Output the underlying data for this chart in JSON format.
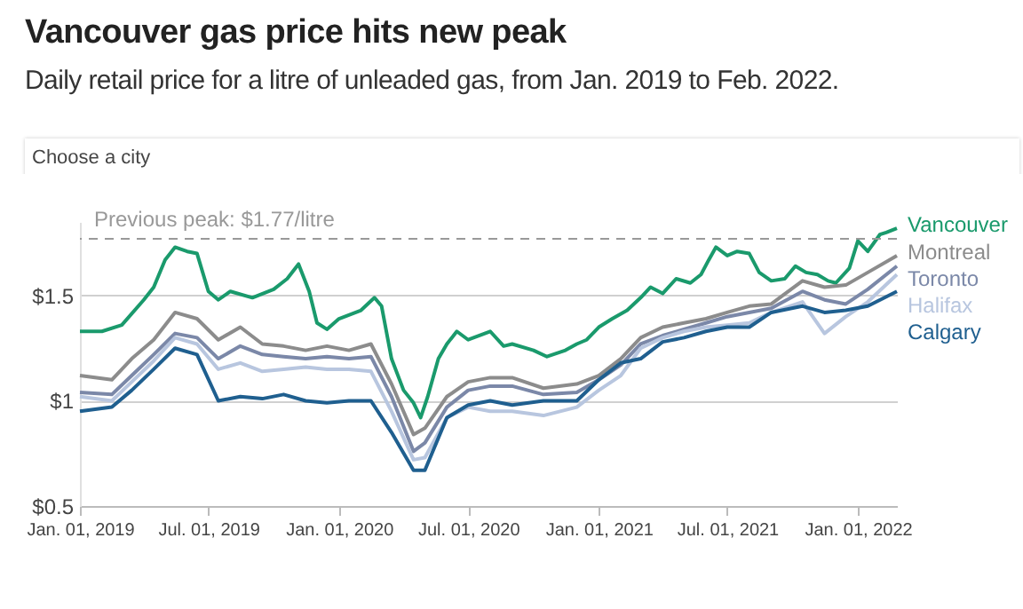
{
  "chart_data": {
    "type": "line",
    "title": "Vancouver gas price hits new peak",
    "subtitle": "Daily retail price for a litre of unleaded gas, from Jan. 2019 to Feb. 2022.",
    "annotations": [
      "Choose a city"
    ],
    "xlim": [
      "2019-01-01",
      "2022-02-25"
    ],
    "xticks": [
      {
        "value": "2019-01-01",
        "label": "Jan. 01, 2019"
      },
      {
        "value": "2019-07-01",
        "label": "Jul. 01, 2019"
      },
      {
        "value": "2020-01-01",
        "label": "Jan. 01, 2020"
      },
      {
        "value": "2020-07-01",
        "label": "Jul. 01, 2020"
      },
      {
        "value": "2021-01-01",
        "label": "Jan. 01, 2021"
      },
      {
        "value": "2021-07-01",
        "label": "Jul. 01, 2021"
      },
      {
        "value": "2022-01-01",
        "label": "Jan. 01, 2022"
      }
    ],
    "ylim": [
      0.5,
      1.85
    ],
    "yticks": [
      {
        "value": 0.5,
        "label": "$0.5"
      },
      {
        "value": 1,
        "label": "$1"
      },
      {
        "value": 1.5,
        "label": "$1.5"
      }
    ],
    "grid": "y",
    "legend": "right",
    "ref_lines": [
      {
        "axis": "y",
        "value": 1.77,
        "label": "Previous peak: $1.77/litre",
        "color": "#999999",
        "line_style": "dashed"
      }
    ],
    "series": [
      {
        "name": "Vancouver",
        "color": "#1a9a6c",
        "x": [
          "2019-01-01",
          "2019-02-01",
          "2019-03-01",
          "2019-04-01",
          "2019-04-15",
          "2019-05-01",
          "2019-05-15",
          "2019-06-01",
          "2019-06-15",
          "2019-07-01",
          "2019-07-15",
          "2019-08-01",
          "2019-09-01",
          "2019-10-01",
          "2019-10-20",
          "2019-11-05",
          "2019-11-20",
          "2019-12-01",
          "2019-12-15",
          "2020-01-01",
          "2020-02-01",
          "2020-02-20",
          "2020-03-01",
          "2020-03-15",
          "2020-04-01",
          "2020-04-15",
          "2020-04-25",
          "2020-05-05",
          "2020-05-20",
          "2020-06-01",
          "2020-06-15",
          "2020-07-01",
          "2020-08-01",
          "2020-08-20",
          "2020-09-01",
          "2020-10-01",
          "2020-10-20",
          "2020-11-15",
          "2020-12-01",
          "2020-12-15",
          "2021-01-01",
          "2021-01-20",
          "2021-02-10",
          "2021-03-01",
          "2021-03-15",
          "2021-04-01",
          "2021-04-20",
          "2021-05-10",
          "2021-05-25",
          "2021-06-05",
          "2021-06-15",
          "2021-07-01",
          "2021-07-15",
          "2021-08-01",
          "2021-08-15",
          "2021-09-01",
          "2021-09-20",
          "2021-10-05",
          "2021-10-20",
          "2021-11-05",
          "2021-11-20",
          "2021-12-01",
          "2021-12-20",
          "2022-01-01",
          "2022-01-15",
          "2022-02-01",
          "2022-02-10",
          "2022-02-25"
        ],
        "values": [
          1.33,
          1.33,
          1.36,
          1.48,
          1.54,
          1.67,
          1.73,
          1.71,
          1.7,
          1.52,
          1.48,
          1.52,
          1.49,
          1.53,
          1.58,
          1.65,
          1.52,
          1.37,
          1.34,
          1.39,
          1.43,
          1.49,
          1.45,
          1.2,
          1.05,
          0.99,
          0.92,
          1.02,
          1.2,
          1.27,
          1.33,
          1.29,
          1.33,
          1.26,
          1.27,
          1.24,
          1.21,
          1.24,
          1.27,
          1.29,
          1.35,
          1.39,
          1.43,
          1.49,
          1.54,
          1.51,
          1.58,
          1.56,
          1.6,
          1.67,
          1.73,
          1.69,
          1.71,
          1.7,
          1.61,
          1.57,
          1.58,
          1.64,
          1.61,
          1.6,
          1.57,
          1.56,
          1.63,
          1.76,
          1.71,
          1.79,
          1.8,
          1.82
        ]
      },
      {
        "name": "Montreal",
        "color": "#8c8c8c",
        "x": [
          "2019-01-01",
          "2019-02-15",
          "2019-03-15",
          "2019-04-15",
          "2019-05-15",
          "2019-06-15",
          "2019-07-15",
          "2019-08-15",
          "2019-09-15",
          "2019-10-15",
          "2019-11-15",
          "2019-12-15",
          "2020-01-15",
          "2020-02-15",
          "2020-03-15",
          "2020-04-15",
          "2020-05-01",
          "2020-06-01",
          "2020-07-01",
          "2020-08-01",
          "2020-09-01",
          "2020-10-15",
          "2020-12-01",
          "2021-01-01",
          "2021-02-01",
          "2021-03-01",
          "2021-04-01",
          "2021-05-01",
          "2021-06-01",
          "2021-07-01",
          "2021-08-01",
          "2021-09-01",
          "2021-10-15",
          "2021-11-15",
          "2021-12-15",
          "2022-01-15",
          "2022-02-25"
        ],
        "values": [
          1.12,
          1.1,
          1.2,
          1.29,
          1.42,
          1.39,
          1.29,
          1.35,
          1.27,
          1.26,
          1.24,
          1.26,
          1.24,
          1.27,
          1.08,
          0.84,
          0.87,
          1.02,
          1.09,
          1.11,
          1.11,
          1.06,
          1.08,
          1.12,
          1.2,
          1.3,
          1.35,
          1.37,
          1.39,
          1.42,
          1.45,
          1.46,
          1.57,
          1.54,
          1.55,
          1.61,
          1.69
        ]
      },
      {
        "name": "Toronto",
        "color": "#7b88a8",
        "x": [
          "2019-01-01",
          "2019-02-15",
          "2019-03-15",
          "2019-04-15",
          "2019-05-15",
          "2019-06-15",
          "2019-07-15",
          "2019-08-15",
          "2019-09-15",
          "2019-10-15",
          "2019-11-15",
          "2019-12-15",
          "2020-01-15",
          "2020-02-15",
          "2020-03-15",
          "2020-04-15",
          "2020-05-01",
          "2020-06-01",
          "2020-07-01",
          "2020-08-01",
          "2020-09-01",
          "2020-10-15",
          "2020-12-01",
          "2021-01-01",
          "2021-02-01",
          "2021-03-01",
          "2021-04-01",
          "2021-05-01",
          "2021-06-01",
          "2021-07-01",
          "2021-08-01",
          "2021-09-01",
          "2021-10-15",
          "2021-11-15",
          "2021-12-15",
          "2022-01-15",
          "2022-02-25"
        ],
        "values": [
          1.04,
          1.03,
          1.12,
          1.22,
          1.32,
          1.3,
          1.2,
          1.26,
          1.22,
          1.21,
          1.2,
          1.21,
          1.2,
          1.21,
          1.02,
          0.76,
          0.8,
          0.97,
          1.05,
          1.07,
          1.07,
          1.03,
          1.04,
          1.1,
          1.17,
          1.27,
          1.31,
          1.34,
          1.37,
          1.4,
          1.42,
          1.44,
          1.52,
          1.48,
          1.46,
          1.53,
          1.64
        ]
      },
      {
        "name": "Halifax",
        "color": "#b8c6df",
        "x": [
          "2019-01-01",
          "2019-02-15",
          "2019-03-15",
          "2019-04-15",
          "2019-05-15",
          "2019-06-15",
          "2019-07-15",
          "2019-08-15",
          "2019-09-15",
          "2019-10-15",
          "2019-11-15",
          "2019-12-15",
          "2020-01-15",
          "2020-02-15",
          "2020-03-15",
          "2020-04-15",
          "2020-05-01",
          "2020-06-01",
          "2020-07-01",
          "2020-08-01",
          "2020-09-01",
          "2020-10-15",
          "2020-12-01",
          "2021-01-01",
          "2021-02-01",
          "2021-03-01",
          "2021-04-01",
          "2021-05-01",
          "2021-06-01",
          "2021-07-01",
          "2021-08-01",
          "2021-09-01",
          "2021-10-15",
          "2021-11-15",
          "2021-12-15",
          "2022-01-15",
          "2022-02-25"
        ],
        "values": [
          1.02,
          1.0,
          1.09,
          1.19,
          1.3,
          1.27,
          1.15,
          1.18,
          1.14,
          1.15,
          1.16,
          1.15,
          1.15,
          1.14,
          0.95,
          0.72,
          0.73,
          0.92,
          0.97,
          0.95,
          0.95,
          0.93,
          0.97,
          1.05,
          1.12,
          1.25,
          1.3,
          1.33,
          1.35,
          1.36,
          1.37,
          1.42,
          1.47,
          1.32,
          1.4,
          1.47,
          1.6
        ]
      },
      {
        "name": "Calgary",
        "color": "#1f5f8f",
        "x": [
          "2019-01-01",
          "2019-02-15",
          "2019-03-15",
          "2019-04-15",
          "2019-05-15",
          "2019-06-15",
          "2019-07-15",
          "2019-08-15",
          "2019-09-15",
          "2019-10-15",
          "2019-11-15",
          "2019-12-15",
          "2020-01-15",
          "2020-02-15",
          "2020-03-15",
          "2020-04-15",
          "2020-05-01",
          "2020-06-01",
          "2020-07-01",
          "2020-08-01",
          "2020-09-01",
          "2020-10-15",
          "2020-12-01",
          "2021-01-01",
          "2021-02-01",
          "2021-03-01",
          "2021-04-01",
          "2021-05-01",
          "2021-06-01",
          "2021-07-01",
          "2021-08-01",
          "2021-09-01",
          "2021-10-15",
          "2021-11-15",
          "2021-12-15",
          "2022-01-15",
          "2022-02-25"
        ],
        "values": [
          0.95,
          0.97,
          1.05,
          1.15,
          1.25,
          1.22,
          1.0,
          1.02,
          1.01,
          1.03,
          1.0,
          0.99,
          1.0,
          1.0,
          0.85,
          0.67,
          0.67,
          0.92,
          0.98,
          1.0,
          0.98,
          1.0,
          1.0,
          1.1,
          1.18,
          1.2,
          1.28,
          1.3,
          1.33,
          1.35,
          1.35,
          1.42,
          1.45,
          1.42,
          1.43,
          1.45,
          1.52
        ]
      }
    ]
  }
}
